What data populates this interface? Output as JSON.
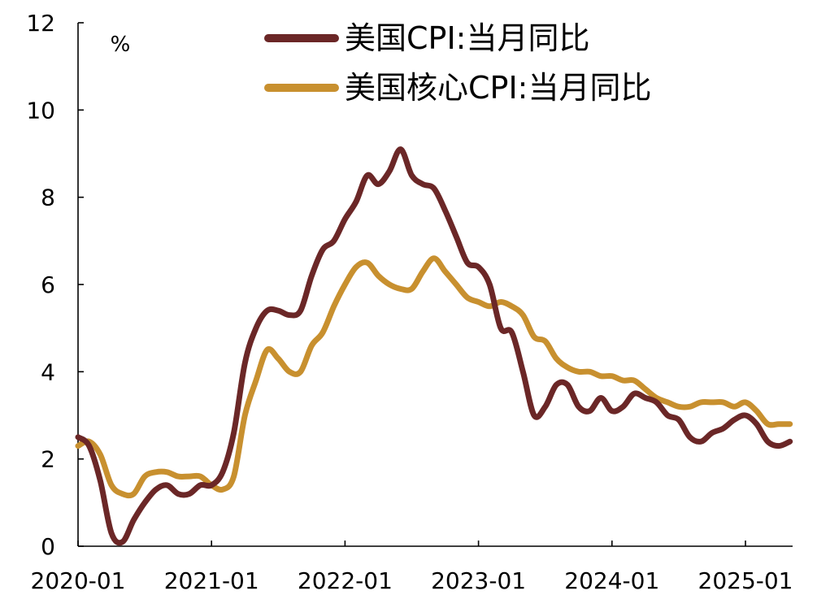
{
  "chart_data": {
    "type": "line",
    "ylabel": "%",
    "ylim": [
      0,
      12
    ],
    "yticks": [
      0,
      2,
      4,
      6,
      8,
      10,
      12
    ],
    "xlim": [
      "2020-01",
      "2025-05"
    ],
    "xticks": [
      "2020-01",
      "2021-01",
      "2022-01",
      "2023-01",
      "2024-01",
      "2025-01"
    ],
    "grid": false,
    "legend_position": "top",
    "series": [
      {
        "name": "美国CPI:当月同比",
        "color": "#6b2727",
        "x": [
          "2020-01",
          "2020-02",
          "2020-03",
          "2020-04",
          "2020-05",
          "2020-06",
          "2020-07",
          "2020-08",
          "2020-09",
          "2020-10",
          "2020-11",
          "2020-12",
          "2021-01",
          "2021-02",
          "2021-03",
          "2021-04",
          "2021-05",
          "2021-06",
          "2021-07",
          "2021-08",
          "2021-09",
          "2021-10",
          "2021-11",
          "2021-12",
          "2022-01",
          "2022-02",
          "2022-03",
          "2022-04",
          "2022-05",
          "2022-06",
          "2022-07",
          "2022-08",
          "2022-09",
          "2022-10",
          "2022-11",
          "2022-12",
          "2023-01",
          "2023-02",
          "2023-03",
          "2023-04",
          "2023-05",
          "2023-06",
          "2023-07",
          "2023-08",
          "2023-09",
          "2023-10",
          "2023-11",
          "2023-12",
          "2024-01",
          "2024-02",
          "2024-03",
          "2024-04",
          "2024-05",
          "2024-06",
          "2024-07",
          "2024-08",
          "2024-09",
          "2024-10",
          "2024-11",
          "2024-12",
          "2025-01",
          "2025-02",
          "2025-03",
          "2025-04",
          "2025-05"
        ],
        "values": [
          2.5,
          2.3,
          1.5,
          0.3,
          0.1,
          0.6,
          1.0,
          1.3,
          1.4,
          1.2,
          1.2,
          1.4,
          1.4,
          1.7,
          2.6,
          4.2,
          5.0,
          5.4,
          5.4,
          5.3,
          5.4,
          6.2,
          6.8,
          7.0,
          7.5,
          7.9,
          8.5,
          8.3,
          8.6,
          9.1,
          8.5,
          8.3,
          8.2,
          7.7,
          7.1,
          6.5,
          6.4,
          6.0,
          5.0,
          4.9,
          4.0,
          3.0,
          3.2,
          3.7,
          3.7,
          3.2,
          3.1,
          3.4,
          3.1,
          3.2,
          3.5,
          3.4,
          3.3,
          3.0,
          2.9,
          2.5,
          2.4,
          2.6,
          2.7,
          2.9,
          3.0,
          2.8,
          2.4,
          2.3,
          2.4
        ]
      },
      {
        "name": "美国核心CPI:当月同比",
        "color": "#c8902f",
        "x": [
          "2020-01",
          "2020-02",
          "2020-03",
          "2020-04",
          "2020-05",
          "2020-06",
          "2020-07",
          "2020-08",
          "2020-09",
          "2020-10",
          "2020-11",
          "2020-12",
          "2021-01",
          "2021-02",
          "2021-03",
          "2021-04",
          "2021-05",
          "2021-06",
          "2021-07",
          "2021-08",
          "2021-09",
          "2021-10",
          "2021-11",
          "2021-12",
          "2022-01",
          "2022-02",
          "2022-03",
          "2022-04",
          "2022-05",
          "2022-06",
          "2022-07",
          "2022-08",
          "2022-09",
          "2022-10",
          "2022-11",
          "2022-12",
          "2023-01",
          "2023-02",
          "2023-03",
          "2023-04",
          "2023-05",
          "2023-06",
          "2023-07",
          "2023-08",
          "2023-09",
          "2023-10",
          "2023-11",
          "2023-12",
          "2024-01",
          "2024-02",
          "2024-03",
          "2024-04",
          "2024-05",
          "2024-06",
          "2024-07",
          "2024-08",
          "2024-09",
          "2024-10",
          "2024-11",
          "2024-12",
          "2025-01",
          "2025-02",
          "2025-03",
          "2025-04",
          "2025-05"
        ],
        "values": [
          2.3,
          2.4,
          2.1,
          1.4,
          1.2,
          1.2,
          1.6,
          1.7,
          1.7,
          1.6,
          1.6,
          1.6,
          1.4,
          1.3,
          1.6,
          3.0,
          3.8,
          4.5,
          4.3,
          4.0,
          4.0,
          4.6,
          4.9,
          5.5,
          6.0,
          6.4,
          6.5,
          6.2,
          6.0,
          5.9,
          5.9,
          6.3,
          6.6,
          6.3,
          6.0,
          5.7,
          5.6,
          5.5,
          5.6,
          5.5,
          5.3,
          4.8,
          4.7,
          4.3,
          4.1,
          4.0,
          4.0,
          3.9,
          3.9,
          3.8,
          3.8,
          3.6,
          3.4,
          3.3,
          3.2,
          3.2,
          3.3,
          3.3,
          3.3,
          3.2,
          3.3,
          3.1,
          2.8,
          2.8,
          2.8
        ]
      }
    ]
  }
}
